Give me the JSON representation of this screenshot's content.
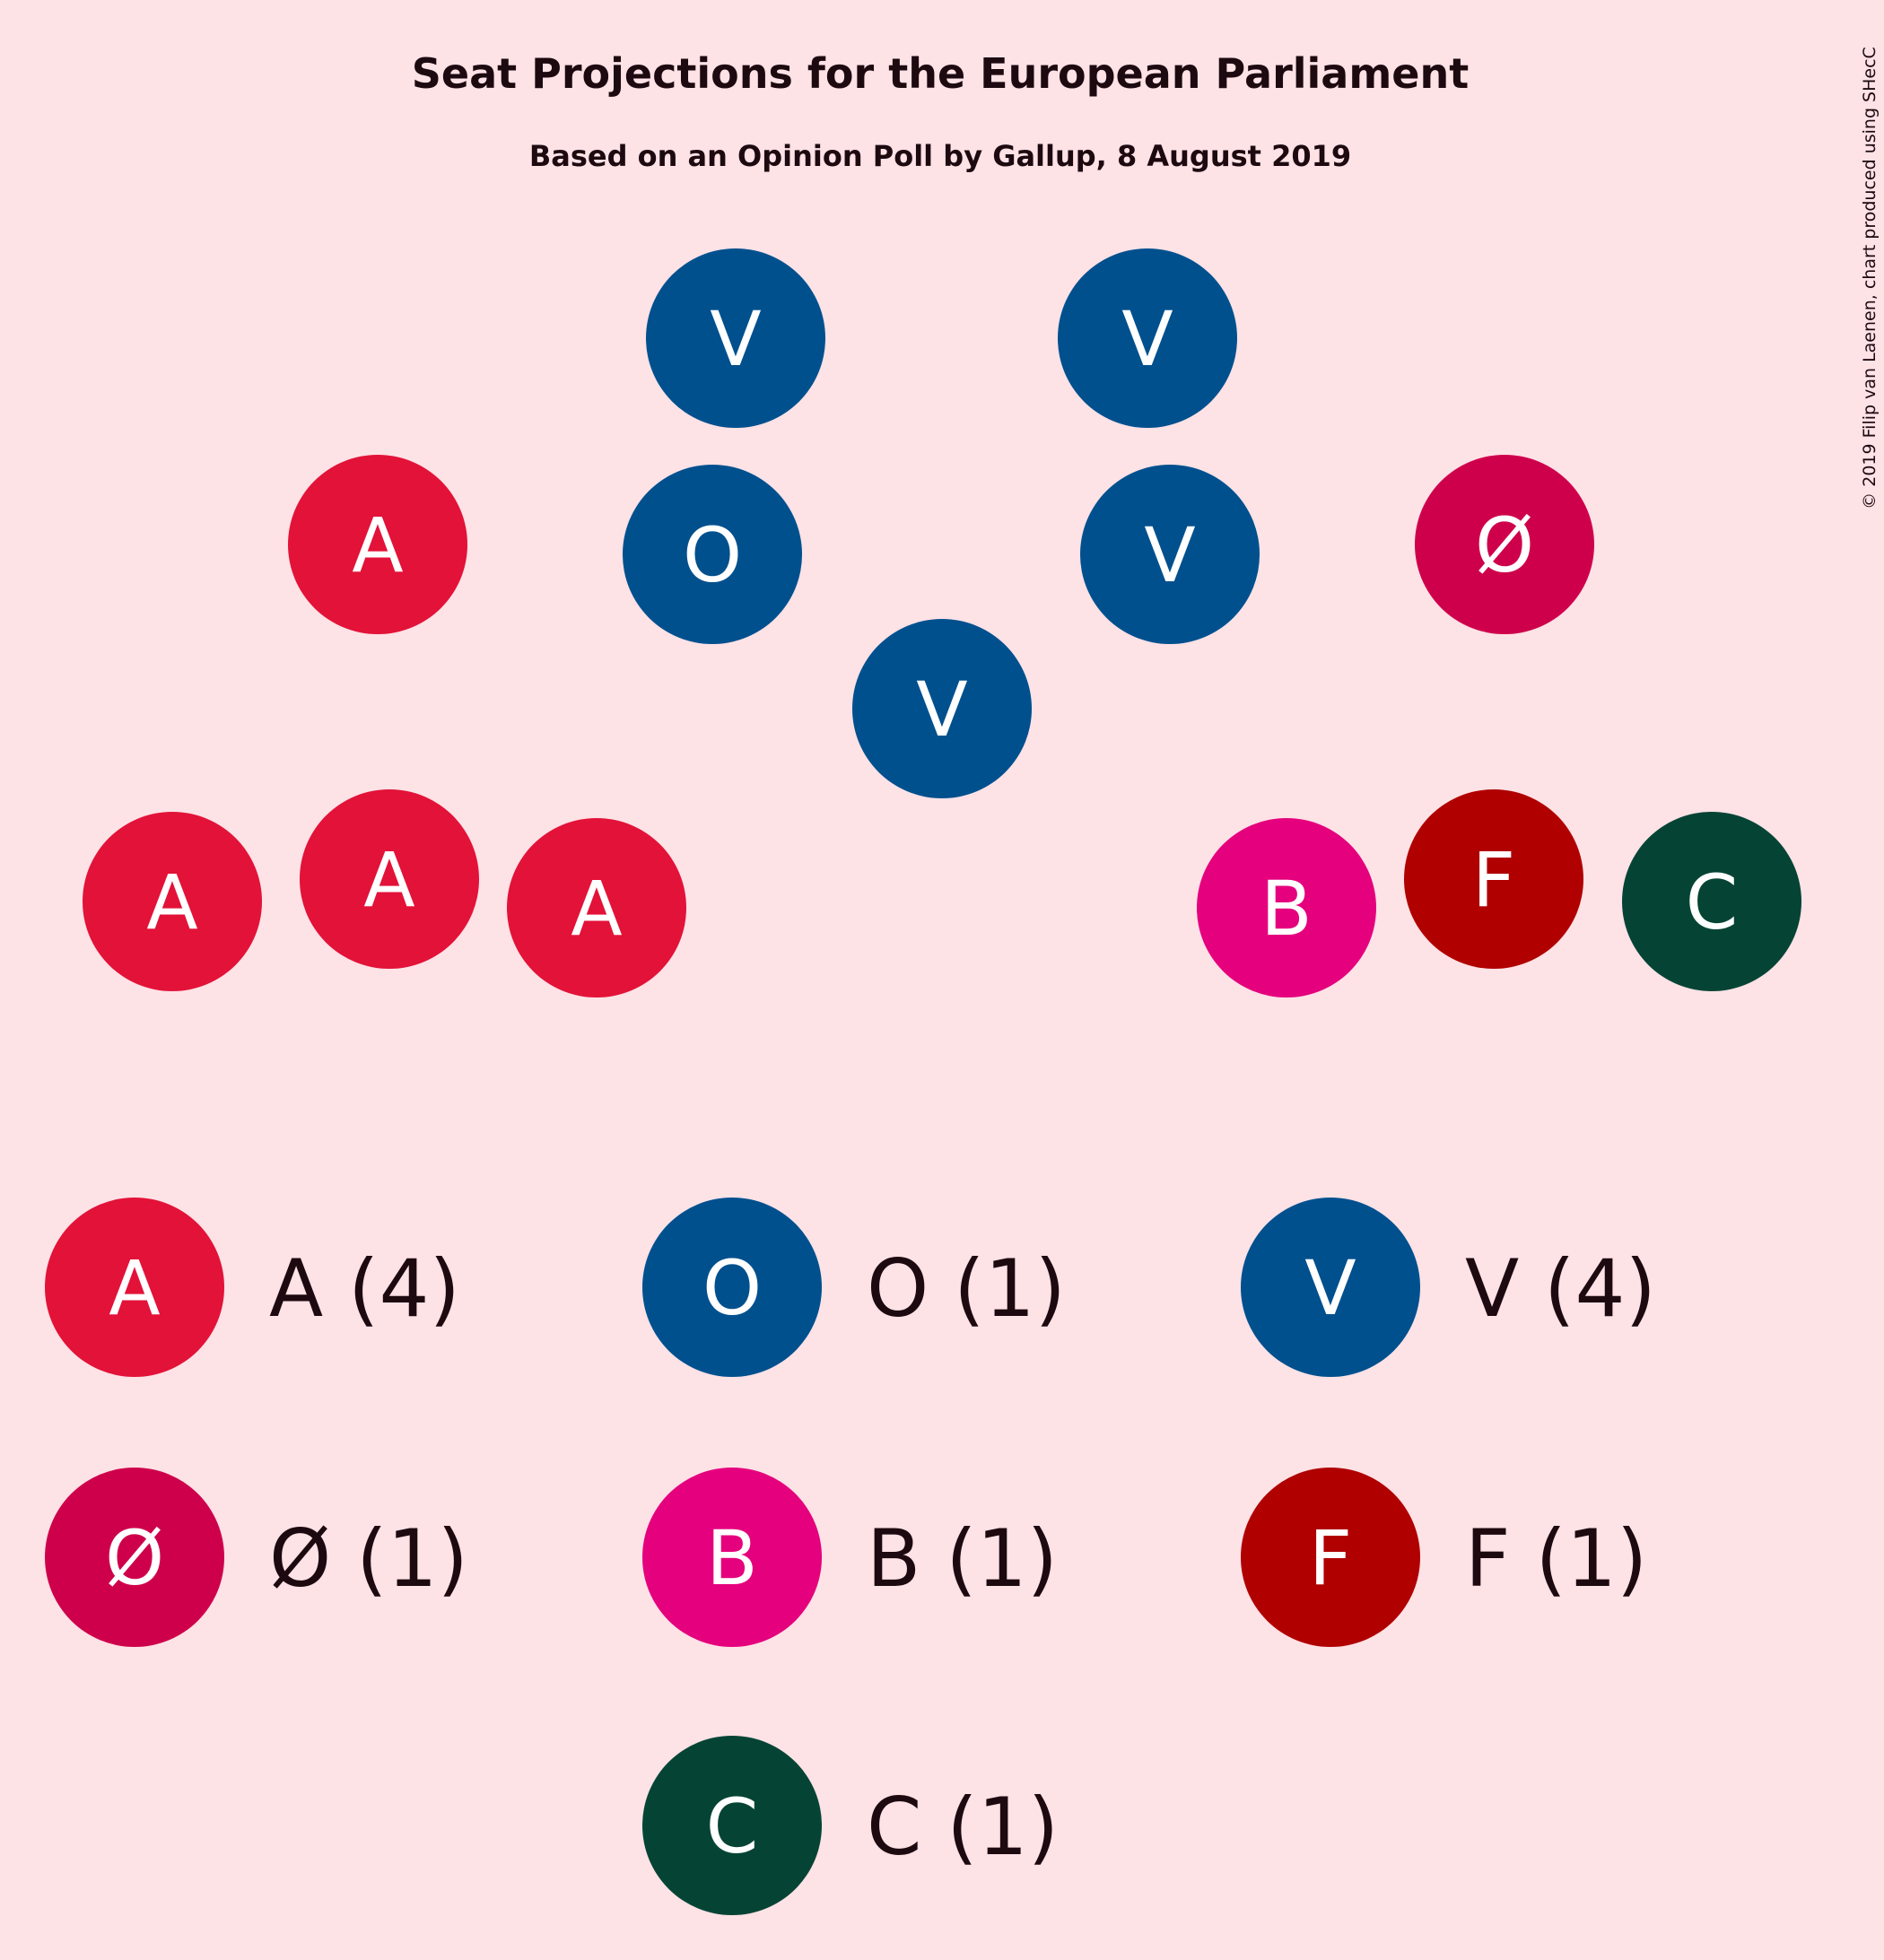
{
  "chart_data": {
    "type": "seat-projection",
    "title": "Seat Projections for the European Parliament",
    "subtitle": "Based on an Opinion Poll by Gallup, 8 August 2019",
    "copyright": "© 2019 Filip van Laenen, chart produced using SHecC",
    "parties": [
      {
        "id": "A",
        "label": "A",
        "seats": 4,
        "color": "#e31238",
        "legend": "A (4)"
      },
      {
        "id": "O",
        "label": "O",
        "seats": 1,
        "color": "#00508e",
        "legend": "O (1)"
      },
      {
        "id": "V",
        "label": "V",
        "seats": 4,
        "color": "#00508e",
        "legend": "V (4)"
      },
      {
        "id": "OE",
        "label": "Ø",
        "seats": 1,
        "color": "#cf004b",
        "legend": "Ø (1)"
      },
      {
        "id": "B",
        "label": "B",
        "seats": 1,
        "color": "#e5007d",
        "legend": "B (1)"
      },
      {
        "id": "F",
        "label": "F",
        "seats": 1,
        "color": "#b00000",
        "legend": "F (1)"
      },
      {
        "id": "C",
        "label": "C",
        "seats": 1,
        "color": "#054434",
        "legend": "C (1)"
      }
    ]
  }
}
